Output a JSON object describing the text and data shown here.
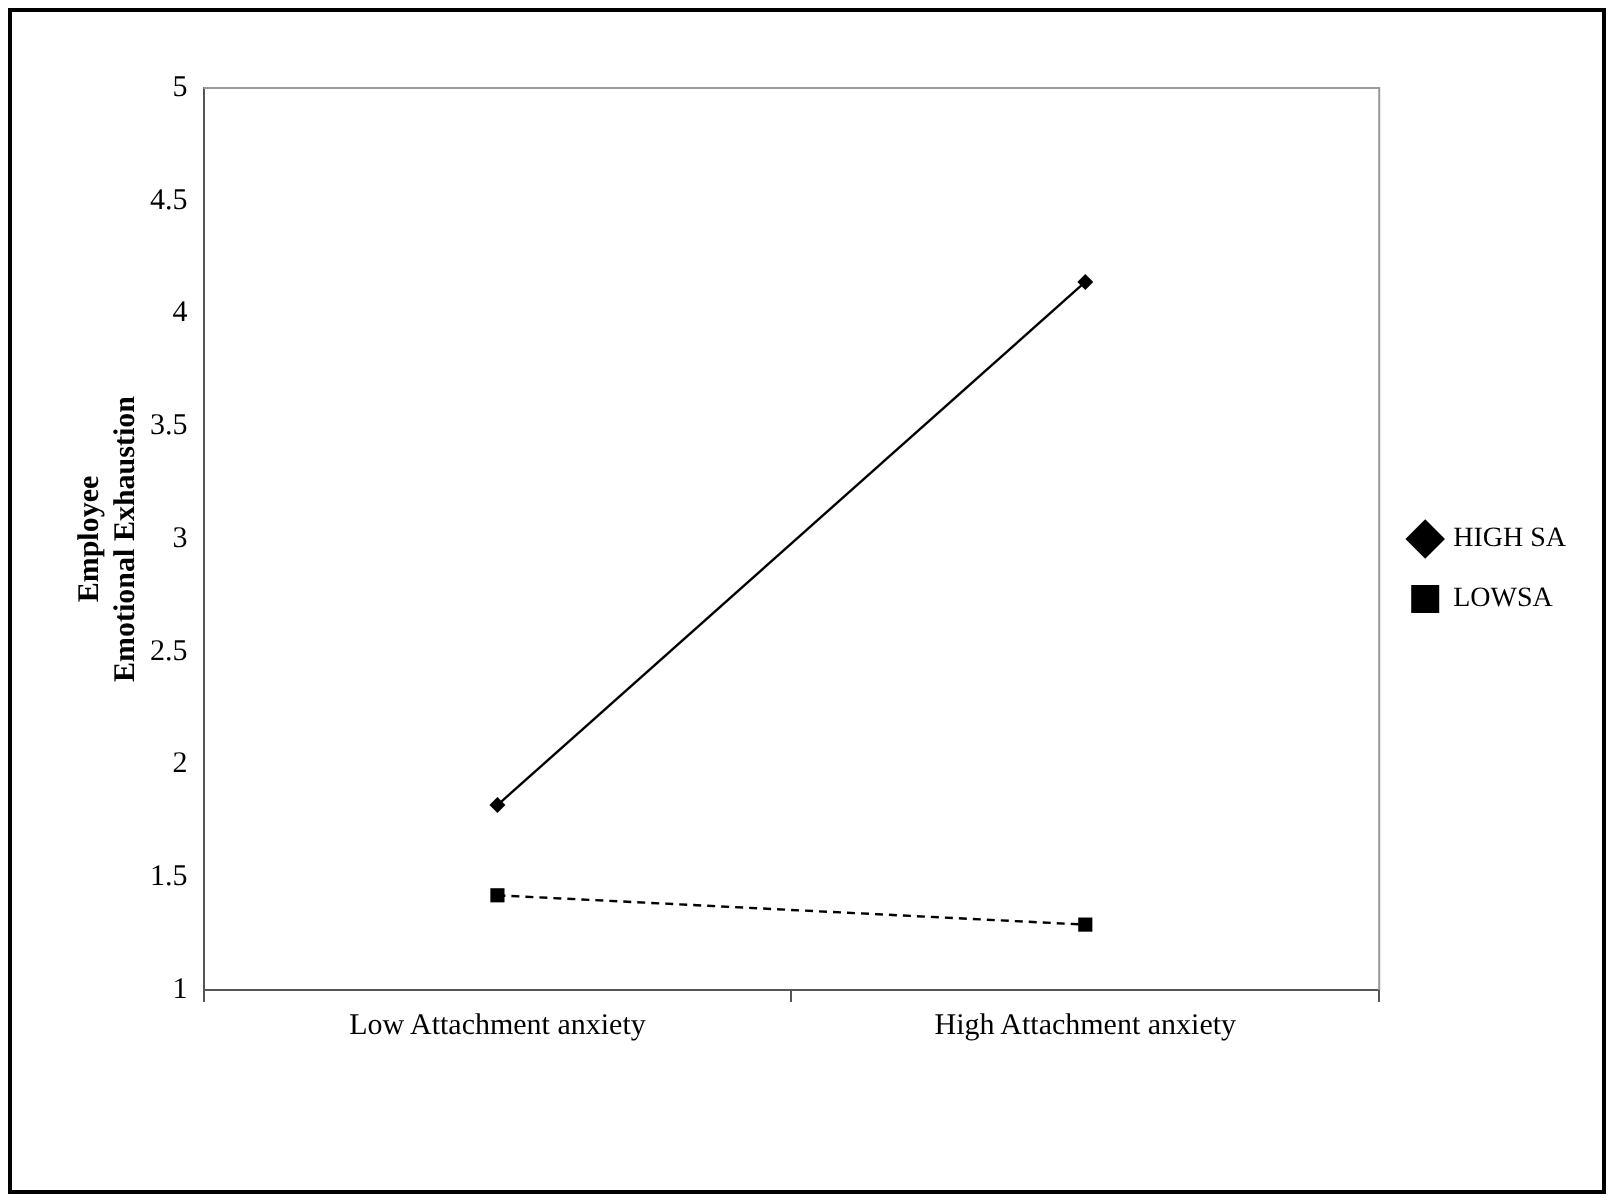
{
  "chart_data": {
    "type": "line",
    "ylabel": "Employee\nEmotional Exhaustion",
    "categories": [
      "Low Attachment anxiety",
      "High Attachment anxiety"
    ],
    "series": [
      {
        "name": "HIGH SA",
        "color": "#000000",
        "values": [
          1.82,
          4.14
        ],
        "marker": "diamond",
        "line_style": "solid"
      },
      {
        "name": "LOWSA",
        "color": "#000000",
        "values": [
          1.42,
          1.29
        ],
        "marker": "square",
        "line_style": "dashed"
      }
    ],
    "ylim": [
      1,
      5
    ],
    "yticks": [
      1,
      1.5,
      2,
      2.5,
      3,
      3.5,
      4,
      4.5,
      5
    ],
    "grid": false,
    "legend": "right"
  }
}
